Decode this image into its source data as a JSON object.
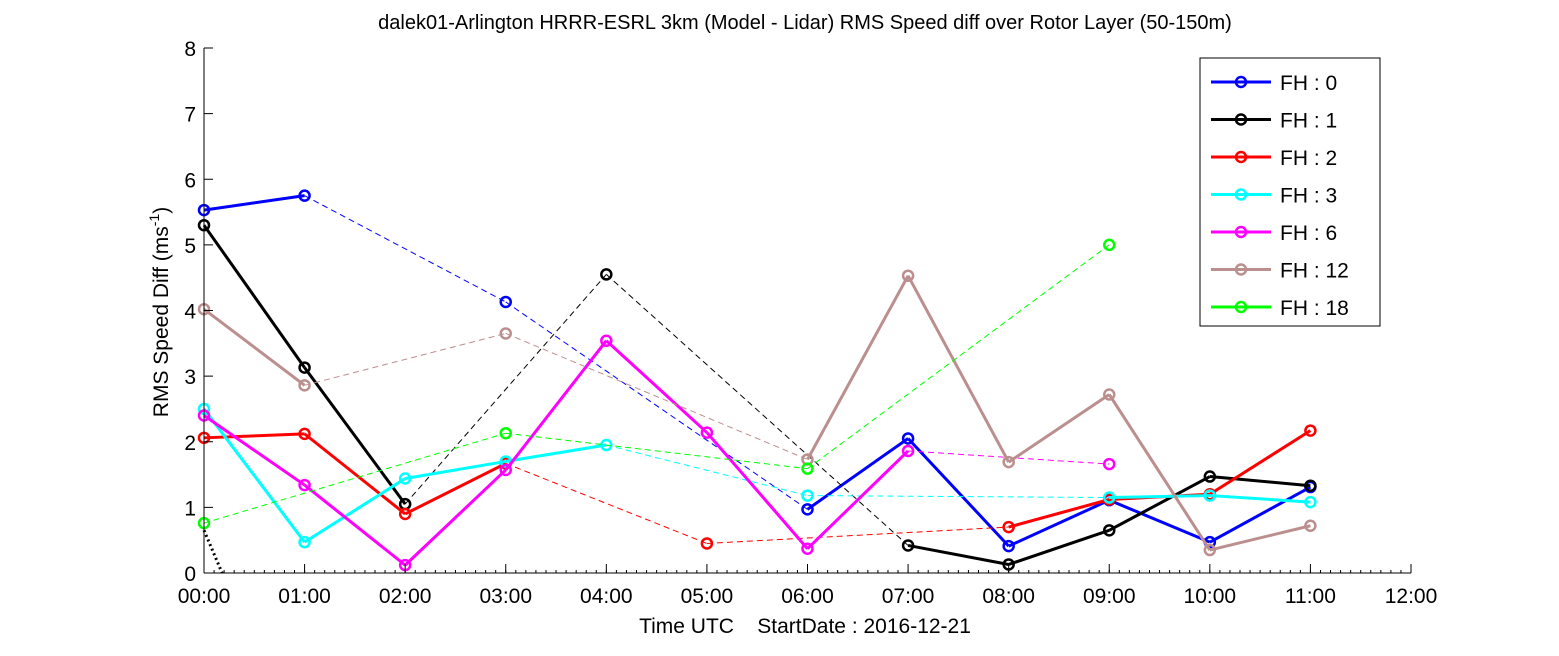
{
  "chart_data": {
    "type": "line",
    "title": "dalek01-Arlington HRRR-ESRL 3km (Model - Lidar) RMS Speed diff over Rotor Layer (50-150m)",
    "xlabel": "Time UTC    StartDate : 2016-12-21",
    "ylabel": "RMS Speed Diff (ms",
    "ylabel_sup": "-1",
    "ylabel_end": ")",
    "xlim": [
      0,
      12
    ],
    "ylim": [
      0,
      8
    ],
    "x_ticks": [
      {
        "value": 0,
        "label": "00:00"
      },
      {
        "value": 1,
        "label": "01:00"
      },
      {
        "value": 2,
        "label": "02:00"
      },
      {
        "value": 3,
        "label": "03:00"
      },
      {
        "value": 4,
        "label": "04:00"
      },
      {
        "value": 5,
        "label": "05:00"
      },
      {
        "value": 6,
        "label": "06:00"
      },
      {
        "value": 7,
        "label": "07:00"
      },
      {
        "value": 8,
        "label": "08:00"
      },
      {
        "value": 9,
        "label": "09:00"
      },
      {
        "value": 10,
        "label": "10:00"
      },
      {
        "value": 11,
        "label": "11:00"
      },
      {
        "value": 12,
        "label": "12:00"
      }
    ],
    "y_ticks": [
      {
        "value": 0,
        "label": "0"
      },
      {
        "value": 1,
        "label": "1"
      },
      {
        "value": 2,
        "label": "2"
      },
      {
        "value": 3,
        "label": "3"
      },
      {
        "value": 4,
        "label": "4"
      },
      {
        "value": 5,
        "label": "5"
      },
      {
        "value": 6,
        "label": "6"
      },
      {
        "value": 7,
        "label": "7"
      },
      {
        "value": 8,
        "label": "8"
      }
    ],
    "grid": false,
    "legend_position": "top-right",
    "series": [
      {
        "name": "FH : 0",
        "color": "#0000ff",
        "x": [
          0,
          1,
          3,
          6,
          7,
          8,
          9,
          10,
          11
        ],
        "y": [
          5.53,
          5.75,
          4.13,
          0.97,
          2.05,
          0.41,
          1.11,
          0.47,
          1.31
        ]
      },
      {
        "name": "FH : 1",
        "color": "#000000",
        "x": [
          0,
          1,
          2,
          4,
          7,
          8,
          9,
          10,
          11
        ],
        "y": [
          5.3,
          3.13,
          1.05,
          4.55,
          0.42,
          0.13,
          0.65,
          1.47,
          1.33
        ]
      },
      {
        "name": "FH : 2",
        "color": "#ff0000",
        "x": [
          0,
          1,
          2,
          3,
          5,
          8,
          9,
          10,
          11
        ],
        "y": [
          2.06,
          2.12,
          0.9,
          1.67,
          0.45,
          0.7,
          1.12,
          1.2,
          2.17
        ]
      },
      {
        "name": "FH : 3",
        "color": "#00ffff",
        "x": [
          0,
          1,
          2,
          3,
          4,
          6,
          9,
          10,
          11
        ],
        "y": [
          2.5,
          0.47,
          1.44,
          1.7,
          1.95,
          1.18,
          1.15,
          1.18,
          1.08
        ]
      },
      {
        "name": "FH : 6",
        "color": "#ff00ff",
        "x": [
          0,
          1,
          2,
          3,
          4,
          5,
          6,
          7,
          9
        ],
        "y": [
          2.4,
          1.34,
          0.12,
          1.57,
          3.54,
          2.14,
          0.37,
          1.86,
          1.66
        ]
      },
      {
        "name": "FH : 12",
        "color": "#bc8f8f",
        "x": [
          0,
          1,
          3,
          6,
          7,
          8,
          9,
          10,
          11
        ],
        "y": [
          4.02,
          2.86,
          3.65,
          1.73,
          4.53,
          1.69,
          2.72,
          0.35,
          0.72
        ]
      },
      {
        "name": "FH : 18",
        "color": "#00ff00",
        "x": [
          0,
          3,
          6,
          9
        ],
        "y": [
          0.76,
          2.13,
          1.59,
          5.0
        ]
      }
    ],
    "extra_line": {
      "color": "#000000",
      "style": "dotted",
      "x": [
        0,
        0.18
      ],
      "y": [
        0.65,
        0
      ]
    }
  }
}
